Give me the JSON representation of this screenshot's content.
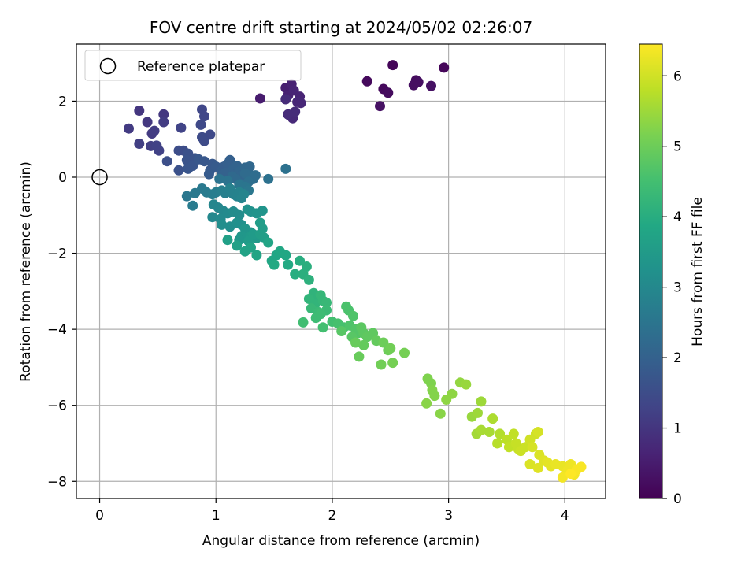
{
  "chart_data": {
    "type": "scatter",
    "title": "FOV centre drift starting at 2024/05/02 02:26:07",
    "xlabel": "Angular distance from reference (arcmin)",
    "ylabel": "Rotation from reference (arcmin)",
    "colorbar_label": "Hours from first FF file",
    "xlim": [
      -0.2,
      4.35
    ],
    "ylim": [
      -8.45,
      3.5
    ],
    "x_ticks": [
      0,
      1,
      2,
      3,
      4
    ],
    "y_ticks": [
      -8,
      -6,
      -4,
      -2,
      0,
      2
    ],
    "colorbar_ticks": [
      0,
      1,
      2,
      3,
      4,
      5,
      6
    ],
    "color_range": [
      0,
      6.45
    ],
    "grid": true,
    "legend_position": "top-left",
    "colormap": "viridis",
    "reference": {
      "name": "Reference platepar",
      "x": 0,
      "y": 0
    },
    "points": [
      [
        2.52,
        2.95,
        0.1
      ],
      [
        2.96,
        2.88,
        0.1
      ],
      [
        2.3,
        2.52,
        0.15
      ],
      [
        2.44,
        2.32,
        0.15
      ],
      [
        2.48,
        2.22,
        0.2
      ],
      [
        2.72,
        2.55,
        0.2
      ],
      [
        2.7,
        2.42,
        0.25
      ],
      [
        2.74,
        2.5,
        0.25
      ],
      [
        2.85,
        2.4,
        0.3
      ],
      [
        2.41,
        1.87,
        0.3
      ],
      [
        1.38,
        2.07,
        0.5
      ],
      [
        1.6,
        2.35,
        0.55
      ],
      [
        1.65,
        2.45,
        0.6
      ],
      [
        1.62,
        2.15,
        0.6
      ],
      [
        1.67,
        2.28,
        0.65
      ],
      [
        1.72,
        2.12,
        0.65
      ],
      [
        1.7,
        1.98,
        0.7
      ],
      [
        1.73,
        1.95,
        0.7
      ],
      [
        1.63,
        1.63,
        0.75
      ],
      [
        1.66,
        1.55,
        0.75
      ],
      [
        1.6,
        2.05,
        0.8
      ],
      [
        1.68,
        1.72,
        0.8
      ],
      [
        1.62,
        1.65,
        0.8
      ],
      [
        0.34,
        1.75,
        1.0
      ],
      [
        0.41,
        1.45,
        1.05
      ],
      [
        0.55,
        1.65,
        1.05
      ],
      [
        0.25,
        1.28,
        1.1
      ],
      [
        0.45,
        1.15,
        1.1
      ],
      [
        0.47,
        1.22,
        1.15
      ],
      [
        0.55,
        1.45,
        1.15
      ],
      [
        0.34,
        0.88,
        1.2
      ],
      [
        0.44,
        0.82,
        1.2
      ],
      [
        0.49,
        0.83,
        1.25
      ],
      [
        0.51,
        0.7,
        1.25
      ],
      [
        0.7,
        1.3,
        1.3
      ],
      [
        0.88,
        1.78,
        1.35
      ],
      [
        0.9,
        1.6,
        1.35
      ],
      [
        0.87,
        1.38,
        1.4
      ],
      [
        0.95,
        1.12,
        1.4
      ],
      [
        0.88,
        1.05,
        1.45
      ],
      [
        0.9,
        0.95,
        1.45
      ],
      [
        0.68,
        0.7,
        1.5
      ],
      [
        0.72,
        0.7,
        1.5
      ],
      [
        0.58,
        0.42,
        1.55
      ],
      [
        0.68,
        0.18,
        1.6
      ],
      [
        0.76,
        0.62,
        1.6
      ],
      [
        0.75,
        0.45,
        1.65
      ],
      [
        0.82,
        0.5,
        1.65
      ],
      [
        0.8,
        0.3,
        1.7
      ],
      [
        0.76,
        0.22,
        1.7
      ],
      [
        0.85,
        0.47,
        1.75
      ],
      [
        0.9,
        0.42,
        1.75
      ],
      [
        0.95,
        0.18,
        1.8
      ],
      [
        0.97,
        0.35,
        1.8
      ],
      [
        1.0,
        0.28,
        1.85
      ],
      [
        0.94,
        0.08,
        1.85
      ],
      [
        1.05,
        0.18,
        1.9
      ],
      [
        1.07,
        0.28,
        1.9
      ],
      [
        1.1,
        0.35,
        1.95
      ],
      [
        1.12,
        0.45,
        1.95
      ],
      [
        1.05,
        0.05,
        2.0
      ],
      [
        1.08,
        0.12,
        2.0
      ],
      [
        1.15,
        0.22,
        2.05
      ],
      [
        1.18,
        0.3,
        2.05
      ],
      [
        1.2,
        0.15,
        2.1
      ],
      [
        1.22,
        0.05,
        2.1
      ],
      [
        1.25,
        0.25,
        2.15
      ],
      [
        1.29,
        0.28,
        2.15
      ],
      [
        1.14,
        0.02,
        2.2
      ],
      [
        1.17,
        -0.05,
        2.2
      ],
      [
        1.25,
        0.1,
        2.25
      ],
      [
        1.3,
        0.05,
        2.25
      ],
      [
        1.32,
        -0.05,
        2.3
      ],
      [
        1.34,
        0.05,
        2.3
      ],
      [
        1.28,
        -0.12,
        2.35
      ],
      [
        1.21,
        -0.18,
        2.35
      ],
      [
        1.45,
        -0.05,
        2.4
      ],
      [
        1.6,
        0.22,
        2.4
      ],
      [
        1.1,
        -0.1,
        2.45
      ],
      [
        1.03,
        -0.05,
        2.45
      ],
      [
        1.2,
        -0.2,
        2.5
      ],
      [
        1.25,
        -0.25,
        2.5
      ],
      [
        1.28,
        -0.35,
        2.55
      ],
      [
        0.75,
        -0.5,
        2.55
      ],
      [
        0.82,
        -0.42,
        2.6
      ],
      [
        0.88,
        -0.3,
        2.6
      ],
      [
        0.92,
        -0.4,
        2.65
      ],
      [
        0.8,
        -0.75,
        2.65
      ],
      [
        0.97,
        -0.45,
        2.7
      ],
      [
        1.0,
        -0.4,
        2.7
      ],
      [
        1.05,
        -0.35,
        2.75
      ],
      [
        1.08,
        -0.42,
        2.75
      ],
      [
        1.12,
        -0.3,
        2.8
      ],
      [
        1.15,
        -0.45,
        2.8
      ],
      [
        1.18,
        -0.5,
        2.85
      ],
      [
        1.2,
        -0.4,
        2.85
      ],
      [
        1.22,
        -0.55,
        2.9
      ],
      [
        1.24,
        -0.45,
        2.9
      ],
      [
        0.98,
        -0.72,
        2.95
      ],
      [
        1.02,
        -0.8,
        2.95
      ],
      [
        1.06,
        -0.88,
        3.0
      ],
      [
        0.97,
        -1.05,
        3.0
      ],
      [
        1.04,
        -1.1,
        3.05
      ],
      [
        1.1,
        -0.95,
        3.05
      ],
      [
        1.15,
        -0.9,
        3.1
      ],
      [
        1.2,
        -1.0,
        3.1
      ],
      [
        1.05,
        -1.25,
        3.15
      ],
      [
        1.12,
        -1.3,
        3.15
      ],
      [
        1.18,
        -1.2,
        3.2
      ],
      [
        1.22,
        -1.25,
        3.2
      ],
      [
        1.27,
        -0.85,
        3.25
      ],
      [
        1.3,
        -0.9,
        3.25
      ],
      [
        1.35,
        -0.95,
        3.3
      ],
      [
        1.4,
        -0.88,
        3.3
      ],
      [
        1.25,
        -1.35,
        3.35
      ],
      [
        1.3,
        -1.45,
        3.35
      ],
      [
        1.22,
        -1.55,
        3.4
      ],
      [
        1.2,
        -1.65,
        3.4
      ],
      [
        1.3,
        -1.55,
        3.45
      ],
      [
        1.35,
        -1.6,
        3.45
      ],
      [
        1.28,
        -1.68,
        3.5
      ],
      [
        1.32,
        -1.5,
        3.5
      ],
      [
        1.38,
        -1.2,
        3.55
      ],
      [
        1.4,
        -1.35,
        3.55
      ],
      [
        1.38,
        -1.5,
        3.6
      ],
      [
        1.41,
        -1.58,
        3.6
      ],
      [
        1.1,
        -1.65,
        3.65
      ],
      [
        1.18,
        -1.8,
        3.65
      ],
      [
        1.25,
        -1.95,
        3.7
      ],
      [
        1.3,
        -1.85,
        3.7
      ],
      [
        1.35,
        -2.05,
        3.75
      ],
      [
        1.45,
        -1.72,
        3.75
      ],
      [
        1.48,
        -2.2,
        3.8
      ],
      [
        1.52,
        -2.05,
        3.8
      ],
      [
        1.55,
        -1.95,
        3.85
      ],
      [
        1.6,
        -2.05,
        3.85
      ],
      [
        1.5,
        -2.3,
        3.9
      ],
      [
        1.62,
        -2.3,
        3.9
      ],
      [
        1.68,
        -2.55,
        4.0
      ],
      [
        1.72,
        -2.2,
        4.0
      ],
      [
        1.78,
        -2.35,
        4.05
      ],
      [
        1.75,
        -2.55,
        4.05
      ],
      [
        1.8,
        -2.7,
        4.1
      ],
      [
        1.84,
        -3.05,
        4.15
      ],
      [
        1.88,
        -3.2,
        4.15
      ],
      [
        1.8,
        -3.2,
        4.2
      ],
      [
        1.85,
        -3.35,
        4.2
      ],
      [
        1.9,
        -3.1,
        4.25
      ],
      [
        1.92,
        -3.25,
        4.25
      ],
      [
        1.95,
        -3.3,
        4.3
      ],
      [
        1.82,
        -3.45,
        4.3
      ],
      [
        1.88,
        -3.55,
        4.35
      ],
      [
        1.95,
        -3.5,
        4.35
      ],
      [
        1.86,
        -3.7,
        4.4
      ],
      [
        1.9,
        -3.6,
        4.4
      ],
      [
        1.75,
        -3.82,
        4.45
      ],
      [
        1.92,
        -3.95,
        4.5
      ],
      [
        2.0,
        -3.8,
        4.5
      ],
      [
        2.05,
        -3.85,
        4.55
      ],
      [
        2.1,
        -3.95,
        4.55
      ],
      [
        2.12,
        -3.4,
        4.6
      ],
      [
        2.14,
        -3.5,
        4.6
      ],
      [
        2.18,
        -3.65,
        4.65
      ],
      [
        2.15,
        -3.9,
        4.65
      ],
      [
        2.2,
        -4.0,
        4.7
      ],
      [
        2.22,
        -4.1,
        4.7
      ],
      [
        2.08,
        -4.05,
        4.75
      ],
      [
        2.17,
        -4.2,
        4.75
      ],
      [
        2.25,
        -3.95,
        4.8
      ],
      [
        2.27,
        -4.1,
        4.8
      ],
      [
        2.3,
        -4.2,
        4.85
      ],
      [
        2.35,
        -4.1,
        4.85
      ],
      [
        2.38,
        -4.3,
        4.9
      ],
      [
        2.27,
        -4.42,
        4.9
      ],
      [
        2.2,
        -4.35,
        4.95
      ],
      [
        2.23,
        -4.72,
        4.95
      ],
      [
        2.44,
        -4.35,
        5.0
      ],
      [
        2.48,
        -4.55,
        5.0
      ],
      [
        2.5,
        -4.5,
        5.05
      ],
      [
        2.42,
        -4.93,
        5.05
      ],
      [
        2.52,
        -4.88,
        5.1
      ],
      [
        2.62,
        -4.62,
        5.1
      ],
      [
        2.82,
        -5.3,
        5.2
      ],
      [
        2.85,
        -5.42,
        5.2
      ],
      [
        2.86,
        -5.6,
        5.25
      ],
      [
        2.88,
        -5.75,
        5.25
      ],
      [
        2.81,
        -5.95,
        5.3
      ],
      [
        2.93,
        -6.22,
        5.3
      ],
      [
        2.98,
        -5.85,
        5.35
      ],
      [
        3.03,
        -5.7,
        5.35
      ],
      [
        3.1,
        -5.4,
        5.4
      ],
      [
        3.15,
        -5.45,
        5.45
      ],
      [
        3.2,
        -6.3,
        5.45
      ],
      [
        3.28,
        -5.9,
        5.5
      ],
      [
        3.25,
        -6.2,
        5.5
      ],
      [
        3.24,
        -6.75,
        5.55
      ],
      [
        3.28,
        -6.65,
        5.6
      ],
      [
        3.35,
        -6.7,
        5.6
      ],
      [
        3.38,
        -6.35,
        5.65
      ],
      [
        3.44,
        -6.75,
        5.7
      ],
      [
        3.42,
        -7.0,
        5.75
      ],
      [
        3.5,
        -6.9,
        5.8
      ],
      [
        3.52,
        -7.1,
        5.85
      ],
      [
        3.56,
        -6.75,
        5.85
      ],
      [
        3.58,
        -7.0,
        5.9
      ],
      [
        3.6,
        -7.15,
        5.9
      ],
      [
        3.62,
        -7.2,
        5.95
      ],
      [
        3.66,
        -7.1,
        5.95
      ],
      [
        3.7,
        -6.9,
        6.0
      ],
      [
        3.75,
        -6.75,
        6.0
      ],
      [
        3.77,
        -6.7,
        6.05
      ],
      [
        3.72,
        -7.1,
        6.05
      ],
      [
        3.78,
        -7.3,
        6.1
      ],
      [
        3.7,
        -7.55,
        6.1
      ],
      [
        3.77,
        -7.65,
        6.15
      ],
      [
        3.82,
        -7.45,
        6.15
      ],
      [
        3.85,
        -7.5,
        6.2
      ],
      [
        3.88,
        -7.6,
        6.2
      ],
      [
        3.92,
        -7.55,
        6.25
      ],
      [
        3.98,
        -7.6,
        6.25
      ],
      [
        4.02,
        -7.72,
        6.3
      ],
      [
        4.05,
        -7.55,
        6.3
      ],
      [
        4.08,
        -7.82,
        6.35
      ],
      [
        3.98,
        -7.9,
        6.35
      ],
      [
        4.1,
        -7.7,
        6.4
      ],
      [
        4.14,
        -7.62,
        6.4
      ],
      [
        4.05,
        -7.8,
        6.45
      ]
    ]
  }
}
